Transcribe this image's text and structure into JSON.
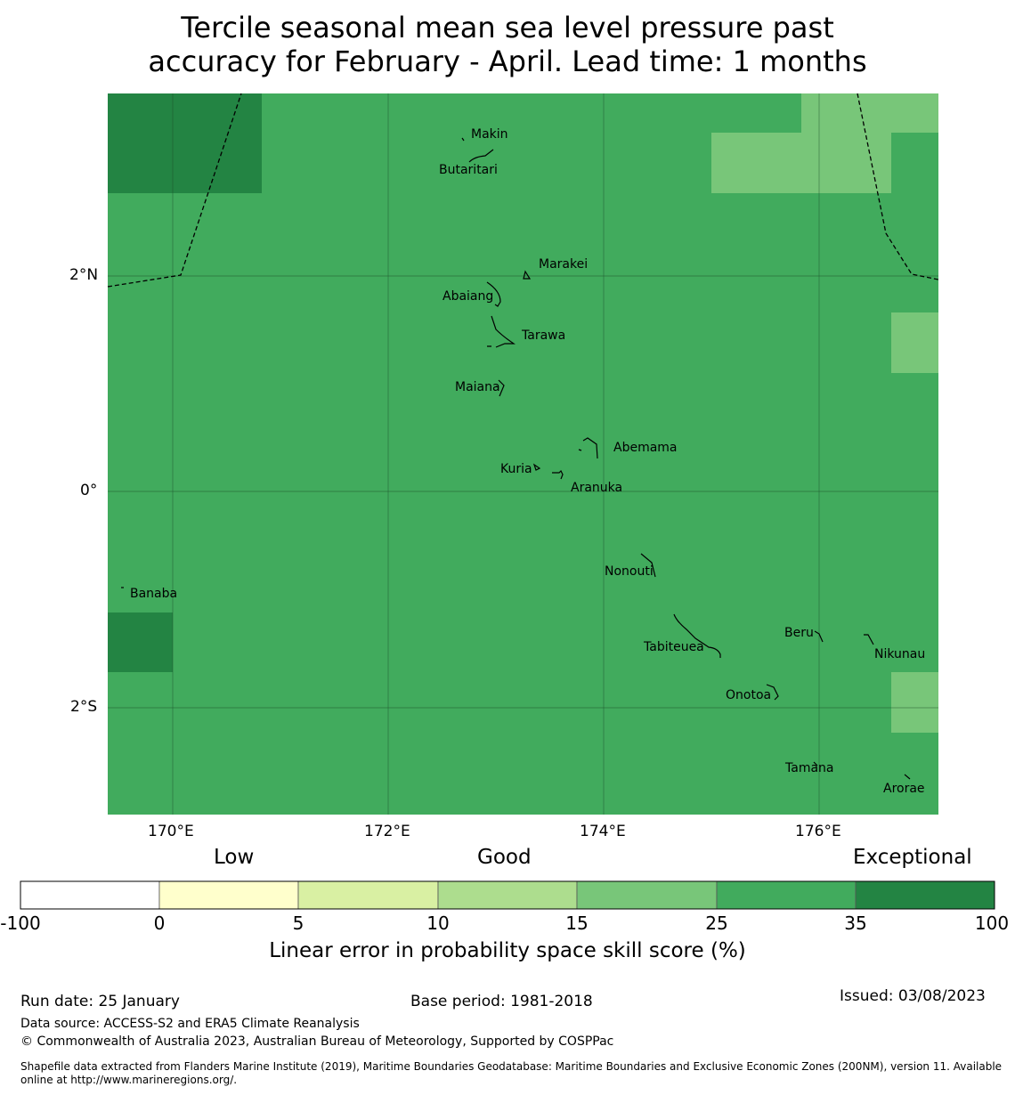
{
  "title": {
    "line1": "Tercile seasonal mean sea level pressure past",
    "line2": "accuracy for February - April. Lead time: 1 months"
  },
  "map": {
    "base_color": "#41ab5d",
    "grid_color": "#1a4a26",
    "boundary_color": "#000000",
    "longitude_labels": [
      "170°E",
      "172°E",
      "174°E",
      "176°E"
    ],
    "latitude_labels": [
      "2°N",
      "0°",
      "2°S"
    ],
    "places": [
      "Makin",
      "Butaritari",
      "Marakei",
      "Abaiang",
      "Tarawa",
      "Maiana",
      "Abemama",
      "Kuria",
      "Aranuka",
      "Nonouti",
      "Banaba",
      "Beru",
      "Nikunau",
      "Tabiteuea",
      "Onotoa",
      "Tamana",
      "Arorae"
    ]
  },
  "colorbar": {
    "categories": [
      "Low",
      "Good",
      "Exceptional"
    ],
    "ticks": [
      "-100",
      "0",
      "5",
      "10",
      "15",
      "25",
      "35",
      "100"
    ],
    "colors": [
      "#ffffff",
      "#ffffcc",
      "#d9f0a3",
      "#addd8e",
      "#78c679",
      "#41ab5d",
      "#238443"
    ],
    "label": "Linear error in probability space skill score (%)"
  },
  "footer": {
    "run_date": "Run date: 25 January",
    "base_period": "Base period: 1981-2018",
    "issued": "Issued: 03/08/2023",
    "data_source": "Data source: ACCESS-S2 and ERA5 Climate Reanalysis",
    "copyright": "© Commonwealth of Australia 2023, Australian Bureau of Meteorology, Supported by COSPPac",
    "shapefile": "Shapefile data extracted from Flanders Marine Institute (2019), Maritime Boundaries Geodatabase: Maritime Boundaries and Exclusive Economic Zones (200NM), version 11. Available online at http://www.marineregions.org/."
  }
}
